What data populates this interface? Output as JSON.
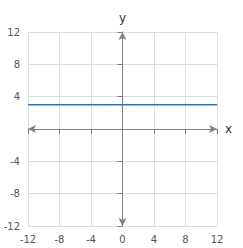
{
  "chart_data": {
    "type": "line",
    "x": [
      -12,
      12
    ],
    "values": [
      3,
      3
    ],
    "color": "#2e75b6",
    "xlabel": "x",
    "ylabel": "y",
    "xlim": [
      -12,
      12
    ],
    "ylim": [
      -12,
      12
    ],
    "xticks": [
      -12,
      -8,
      -4,
      0,
      4,
      8,
      12
    ],
    "yticks": [
      -12,
      -8,
      -4,
      4,
      8,
      12
    ],
    "grid": true
  }
}
